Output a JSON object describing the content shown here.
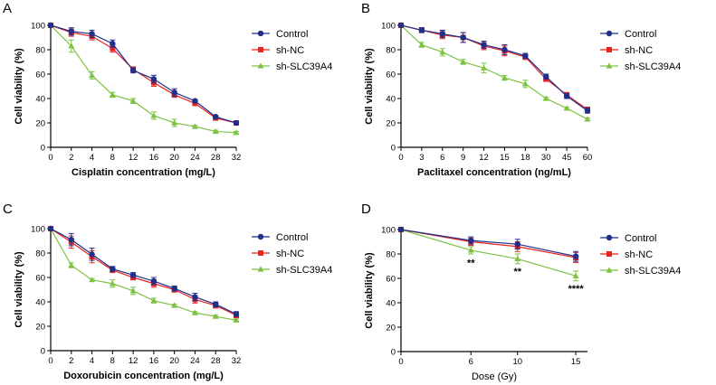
{
  "colors": {
    "control": "#1f2f8c",
    "shnc": "#e8231f",
    "sh_slc": "#7dc242",
    "axis": "#000000"
  },
  "chart_data": [
    {
      "panel": "A",
      "type": "line",
      "xlabel": "Cisplatin concentration (mg/L)",
      "xlabel_bold": true,
      "ylabel": "Cell viability (%)",
      "categories": [
        "0",
        "2",
        "4",
        "8",
        "12",
        "16",
        "20",
        "24",
        "28",
        "32"
      ],
      "ylim": [
        0,
        100
      ],
      "yticks": [
        "0",
        "20",
        "40",
        "60",
        "80",
        "100"
      ],
      "legend": [
        "Control",
        "sh-NC",
        "sh-SLC39A4"
      ],
      "series": [
        {
          "name": "Control",
          "values": [
            100,
            95,
            93,
            85,
            63,
            56,
            45,
            38,
            25,
            20
          ],
          "errors": [
            1,
            3,
            3,
            3,
            2,
            3,
            3,
            1,
            1,
            1
          ]
        },
        {
          "name": "sh-NC",
          "values": [
            100,
            94,
            91,
            81,
            64,
            53,
            43,
            36,
            24,
            20
          ],
          "errors": [
            1,
            3,
            3,
            3,
            2,
            3,
            2,
            1,
            1,
            1
          ]
        },
        {
          "name": "sh-SLC39A4",
          "values": [
            100,
            83,
            59,
            43,
            38,
            26,
            20,
            17,
            13,
            12
          ],
          "errors": [
            1,
            5,
            3,
            2,
            2,
            3,
            3,
            1,
            1,
            1
          ]
        }
      ],
      "annotations": []
    },
    {
      "panel": "B",
      "type": "line",
      "xlabel": "Paclitaxel concentration (ng/mL)",
      "xlabel_bold": true,
      "ylabel": "Cell viability (%)",
      "categories": [
        "0",
        "3",
        "6",
        "9",
        "12",
        "15",
        "18",
        "30",
        "45",
        "60"
      ],
      "ylim": [
        0,
        100
      ],
      "yticks": [
        "0",
        "20",
        "40",
        "60",
        "80",
        "100"
      ],
      "legend": [
        "Control",
        "sh-NC",
        "sh-SLC39A4"
      ],
      "series": [
        {
          "name": "Control",
          "values": [
            100,
            96,
            93,
            90,
            84,
            80,
            75,
            58,
            42,
            30
          ],
          "errors": [
            1,
            2,
            3,
            4,
            3,
            4,
            2,
            2,
            2,
            2
          ]
        },
        {
          "name": "sh-NC",
          "values": [
            100,
            96,
            92,
            90,
            83,
            79,
            74,
            56,
            43,
            31
          ],
          "errors": [
            1,
            2,
            3,
            4,
            3,
            4,
            2,
            2,
            2,
            2
          ]
        },
        {
          "name": "sh-SLC39A4",
          "values": [
            100,
            84,
            78,
            70,
            65,
            57,
            52,
            40,
            32,
            23
          ],
          "errors": [
            1,
            2,
            3,
            2,
            4,
            2,
            3,
            1,
            1,
            1
          ]
        }
      ],
      "annotations": []
    },
    {
      "panel": "C",
      "type": "line",
      "xlabel": "Doxorubicin concentration (mg/L)",
      "xlabel_bold": true,
      "ylabel": "Cell viability (%)",
      "categories": [
        "0",
        "2",
        "4",
        "8",
        "12",
        "16",
        "20",
        "24",
        "28",
        "32"
      ],
      "ylim": [
        0,
        100
      ],
      "yticks": [
        "0",
        "20",
        "40",
        "60",
        "80",
        "100"
      ],
      "legend": [
        "Control",
        "sh-NC",
        "sh-SLC39A4"
      ],
      "series": [
        {
          "name": "Control",
          "values": [
            100,
            91,
            79,
            67,
            62,
            57,
            51,
            44,
            38,
            30
          ],
          "errors": [
            1,
            5,
            5,
            2,
            2,
            3,
            2,
            3,
            2,
            2
          ]
        },
        {
          "name": "sh-NC",
          "values": [
            100,
            89,
            77,
            66,
            60,
            55,
            50,
            42,
            37,
            29
          ],
          "errors": [
            1,
            5,
            5,
            2,
            2,
            3,
            2,
            3,
            2,
            2
          ]
        },
        {
          "name": "sh-SLC39A4",
          "values": [
            100,
            70,
            58,
            55,
            49,
            41,
            37,
            31,
            28,
            25
          ],
          "errors": [
            1,
            2,
            1,
            3,
            3,
            2,
            1,
            1,
            1,
            1
          ]
        }
      ],
      "annotations": []
    },
    {
      "panel": "D",
      "type": "line",
      "xlabel": "Dose (Gy)",
      "xlabel_bold": false,
      "ylabel": "Cell viability (%)",
      "x": [
        0,
        6,
        10,
        15
      ],
      "xlim": [
        0,
        16
      ],
      "xticks": [
        0,
        6,
        10,
        15
      ],
      "ylim": [
        0,
        100
      ],
      "yticks": [
        "0",
        "20",
        "40",
        "60",
        "80",
        "100"
      ],
      "legend": [
        "Control",
        "sh-NC",
        "sh-SLC39A4"
      ],
      "series": [
        {
          "name": "Control",
          "values": [
            100,
            91,
            88,
            78
          ],
          "errors": [
            1,
            3,
            4,
            4
          ]
        },
        {
          "name": "sh-NC",
          "values": [
            100,
            90,
            86,
            77
          ],
          "errors": [
            1,
            3,
            4,
            4
          ]
        },
        {
          "name": "sh-SLC39A4",
          "values": [
            100,
            83,
            76,
            62
          ],
          "errors": [
            1,
            3,
            4,
            4
          ]
        }
      ],
      "annotations": [
        {
          "x": 6,
          "y": 73,
          "text": "**"
        },
        {
          "x": 10,
          "y": 66,
          "text": "**"
        },
        {
          "x": 15,
          "y": 52,
          "text": "****"
        }
      ]
    }
  ]
}
